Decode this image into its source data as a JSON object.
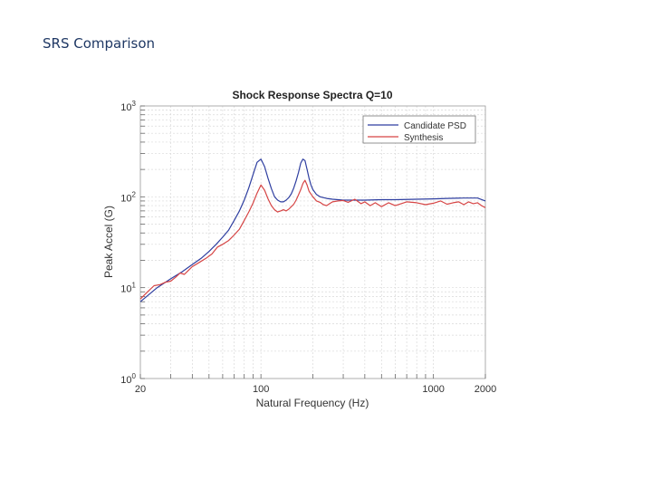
{
  "slide": {
    "title": "SRS Comparison"
  },
  "chart_data": {
    "type": "line",
    "title": "Shock Response Spectra  Q=10",
    "xlabel": "Natural Frequency (Hz)",
    "ylabel": "Peak Accel (G)",
    "xscale": "log",
    "yscale": "log",
    "xlim": [
      20,
      2000
    ],
    "ylim": [
      1,
      1000
    ],
    "x_ticks": [
      {
        "value": 20,
        "label": "20"
      },
      {
        "value": 100,
        "label": "100"
      },
      {
        "value": 1000,
        "label": "1000"
      },
      {
        "value": 2000,
        "label": "2000"
      }
    ],
    "y_ticks": [
      {
        "value": 1,
        "base": "10",
        "exp": "0"
      },
      {
        "value": 10,
        "base": "10",
        "exp": "1"
      },
      {
        "value": 100,
        "base": "10",
        "exp": "2"
      },
      {
        "value": 1000,
        "base": "10",
        "exp": "3"
      }
    ],
    "grid": true,
    "legend_position": "top-right",
    "series": [
      {
        "name": "Candidate PSD",
        "color": "#2e3ea0",
        "x": [
          20,
          25,
          30,
          35,
          40,
          45,
          50,
          55,
          60,
          65,
          70,
          75,
          80,
          85,
          90,
          95,
          100,
          105,
          110,
          115,
          120,
          125,
          130,
          135,
          140,
          145,
          150,
          155,
          160,
          165,
          170,
          175,
          180,
          185,
          190,
          195,
          200,
          210,
          220,
          240,
          260,
          280,
          300,
          350,
          400,
          500,
          600,
          800,
          1000,
          1200,
          1500,
          1800,
          2000
        ],
        "values": [
          7,
          10,
          12.5,
          15,
          18,
          21,
          25,
          30,
          36,
          43,
          55,
          70,
          92,
          125,
          175,
          240,
          260,
          215,
          160,
          123,
          100,
          92,
          88,
          88,
          92,
          98,
          108,
          125,
          150,
          185,
          235,
          260,
          250,
          200,
          160,
          135,
          120,
          106,
          100,
          96,
          94,
          93,
          92,
          92,
          92,
          93,
          93,
          94,
          95,
          96,
          97,
          97,
          90
        ]
      },
      {
        "name": "Synthesis",
        "color": "#d64545",
        "x": [
          20,
          22,
          24,
          26,
          28,
          30,
          32,
          34,
          36,
          38,
          40,
          44,
          48,
          52,
          56,
          60,
          65,
          70,
          75,
          80,
          85,
          90,
          95,
          100,
          105,
          110,
          115,
          120,
          125,
          130,
          135,
          140,
          145,
          150,
          155,
          160,
          165,
          170,
          175,
          180,
          185,
          190,
          200,
          210,
          220,
          230,
          240,
          250,
          260,
          280,
          300,
          320,
          350,
          380,
          400,
          430,
          460,
          500,
          550,
          600,
          650,
          700,
          800,
          900,
          1000,
          1100,
          1200,
          1300,
          1400,
          1500,
          1600,
          1700,
          1800,
          1900,
          2000
        ],
        "values": [
          7.5,
          9,
          10.5,
          10.8,
          11.5,
          11.8,
          13,
          14.5,
          14,
          15.5,
          17,
          19,
          21,
          23.5,
          28,
          30,
          33,
          38,
          44,
          55,
          68,
          85,
          110,
          135,
          118,
          95,
          80,
          72,
          68,
          70,
          72,
          70,
          73,
          78,
          83,
          92,
          105,
          120,
          140,
          152,
          135,
          115,
          100,
          90,
          87,
          82,
          80,
          84,
          88,
          90,
          91,
          87,
          94,
          84,
          88,
          80,
          86,
          78,
          86,
          80,
          84,
          88,
          86,
          82,
          85,
          90,
          83,
          86,
          88,
          82,
          88,
          84,
          86,
          80,
          76
        ]
      }
    ]
  }
}
